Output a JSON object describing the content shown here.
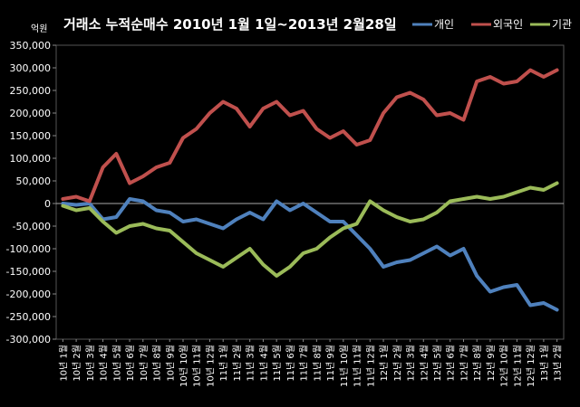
{
  "chart_data": {
    "type": "line",
    "title": "거래소  누적순매수 2010년 1월 1일~2013년 2월28일",
    "ylabel": "억원",
    "ylim": [
      -300000,
      350000
    ],
    "yticks": [
      350000,
      300000,
      250000,
      200000,
      150000,
      100000,
      50000,
      0,
      -50000,
      -100000,
      -150000,
      -200000,
      -250000,
      -300000
    ],
    "ytick_labels": [
      "350,000",
      "300,000",
      "250,000",
      "200,000",
      "150,000",
      "100,000",
      "50,000",
      "0",
      "-50,000",
      "-100,000",
      "-150,000",
      "-200,000",
      "-250,000",
      "-300,000"
    ],
    "categories": [
      "10년 1월",
      "10년 2월",
      "10년 3월",
      "10년 4월",
      "10년 5월",
      "10년 6월",
      "10년 7월",
      "10년 8월",
      "10년 9월",
      "10년 10월",
      "10년 11월",
      "10년 12월",
      "11년 1월",
      "11년 2월",
      "11년 3월",
      "11년 4월",
      "11년 5월",
      "11년 6월",
      "11년 7월",
      "11년 8월",
      "11년 9월",
      "11년 10월",
      "11년 11월",
      "11년 12월",
      "12년 1월",
      "12년 2월",
      "12년 3월",
      "12년 4월",
      "12년 5월",
      "12년 6월",
      "12년 7월",
      "12년 8월",
      "12년 9월",
      "12년 10월",
      "12년 11월",
      "12년 12월",
      "13년 1월",
      "13년 2월"
    ],
    "legend_position": "top-right",
    "grid": false,
    "series": [
      {
        "name": "개인",
        "color": "#4F81BD",
        "values": [
          0,
          -3000,
          0,
          -35000,
          -30000,
          10000,
          5000,
          -15000,
          -20000,
          -40000,
          -35000,
          -45000,
          -55000,
          -35000,
          -20000,
          -35000,
          5000,
          -15000,
          0,
          -20000,
          -40000,
          -40000,
          -70000,
          -100000,
          -140000,
          -130000,
          -125000,
          -110000,
          -95000,
          -115000,
          -100000,
          -160000,
          -195000,
          -185000,
          -180000,
          -225000,
          -220000,
          -235000
        ]
      },
      {
        "name": "외국인",
        "color": "#C0504D",
        "values": [
          10000,
          15000,
          5000,
          80000,
          110000,
          45000,
          60000,
          80000,
          90000,
          145000,
          165000,
          200000,
          225000,
          210000,
          170000,
          210000,
          225000,
          195000,
          205000,
          165000,
          145000,
          160000,
          130000,
          140000,
          200000,
          235000,
          245000,
          230000,
          195000,
          200000,
          185000,
          270000,
          280000,
          265000,
          270000,
          295000,
          280000,
          295000
        ]
      },
      {
        "name": "기관",
        "color": "#9BBB59",
        "values": [
          -5000,
          -15000,
          -10000,
          -40000,
          -65000,
          -50000,
          -45000,
          -55000,
          -60000,
          -85000,
          -110000,
          -125000,
          -140000,
          -120000,
          -100000,
          -135000,
          -160000,
          -140000,
          -110000,
          -100000,
          -75000,
          -55000,
          -45000,
          5000,
          -15000,
          -30000,
          -40000,
          -35000,
          -20000,
          5000,
          10000,
          15000,
          10000,
          15000,
          25000,
          35000,
          30000,
          45000
        ]
      }
    ]
  }
}
